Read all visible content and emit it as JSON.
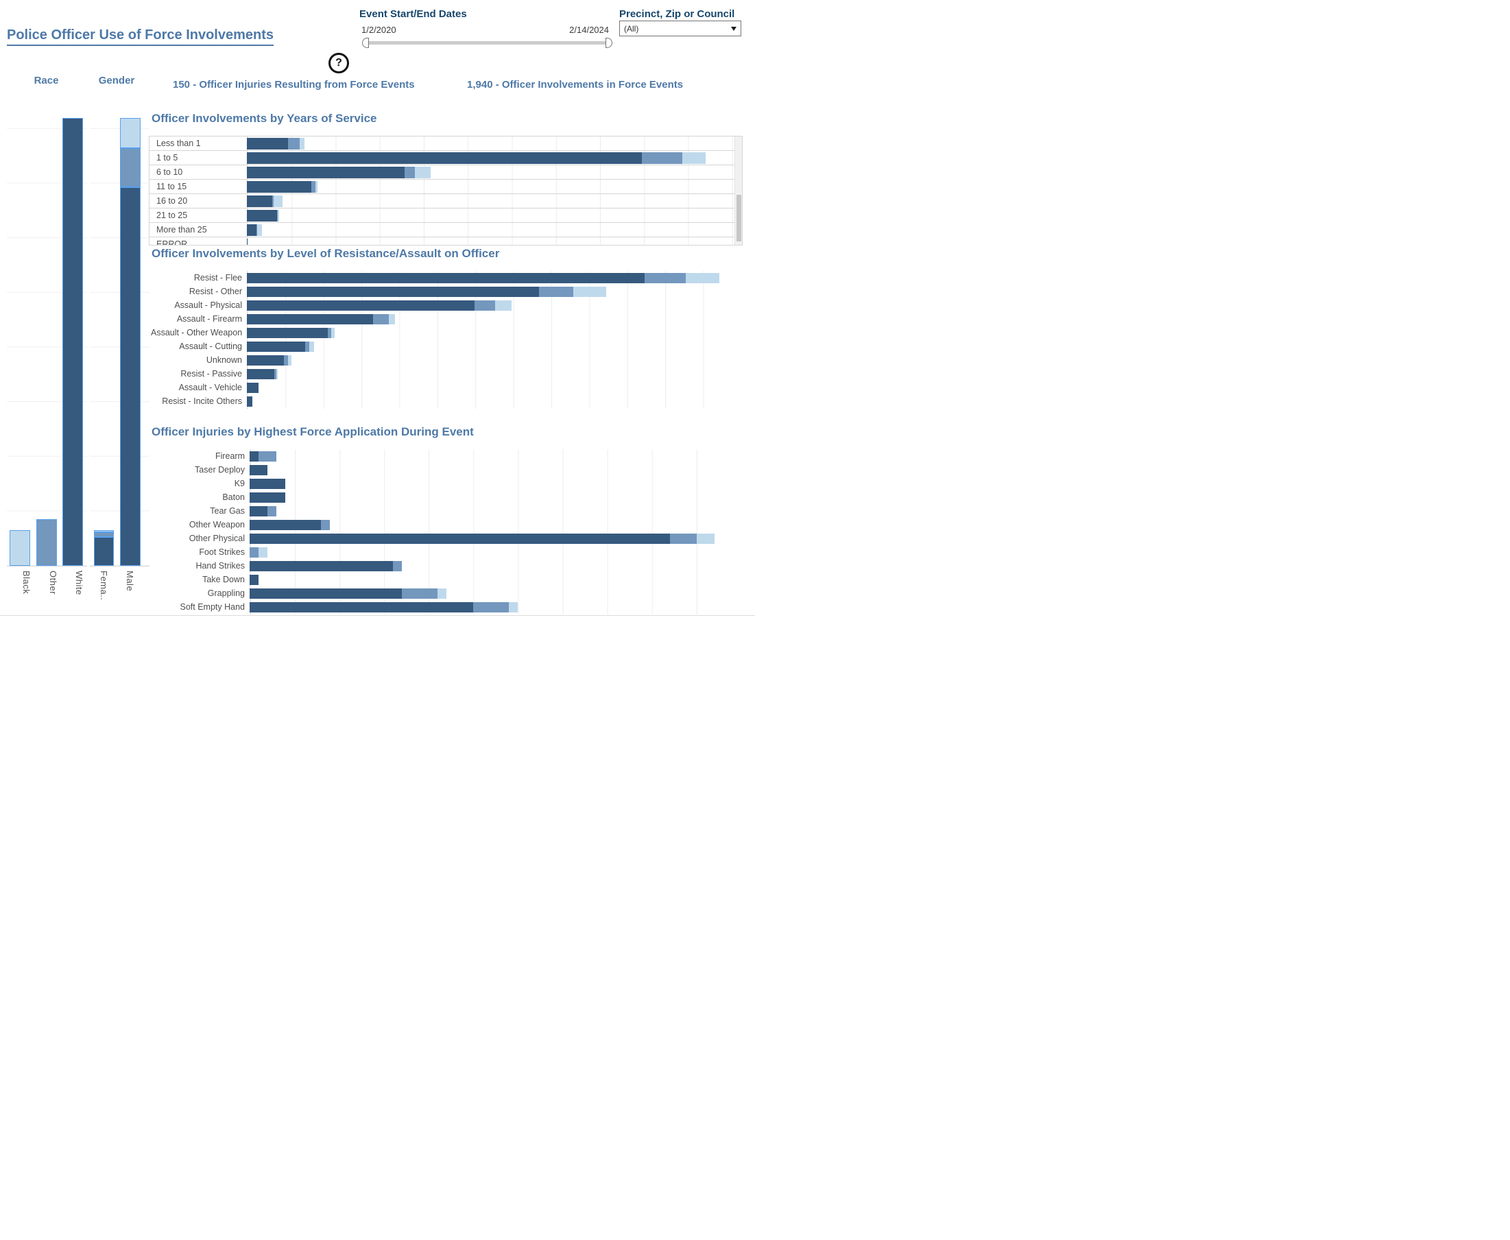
{
  "header": {
    "title": "Police Officer Use of Force Involvements",
    "date_filter": {
      "label": "Event Start/End Dates",
      "start": "1/2/2020",
      "end": "2/14/2024"
    },
    "region_filter": {
      "label": "Precinct, Zip or Council",
      "value": "(All)"
    },
    "stats": [
      {
        "text": "150 - Officer Injuries Resulting from Force Events"
      },
      {
        "text": "1,940 - Officer Involvements in Force Events"
      }
    ]
  },
  "icons": {
    "help": "question-mark-icon",
    "dropdown_caret": "chevron-down-icon"
  },
  "colors": {
    "accent_title": "#4E79A7",
    "filter_header": "#17466B",
    "segment_dark": "#36597E",
    "segment_medium": "#7397BD",
    "segment_light": "#BFD9EC",
    "highlight_border": "#57A0F0",
    "label_gray": "#4E4E4E"
  },
  "chart_data": [
    {
      "id": "race",
      "type": "bar",
      "orientation": "vertical",
      "stacked": true,
      "title": "Race",
      "categories": [
        "Black",
        "Other",
        "White"
      ],
      "series": [
        {
          "key": "dark",
          "name": "dark_blue",
          "values": [
            0,
            0,
            1640
          ]
        },
        {
          "key": "medium",
          "name": "medium_blue",
          "values": [
            0,
            170,
            0
          ]
        },
        {
          "key": "light",
          "name": "light_blue",
          "values": [
            130,
            0,
            0
          ]
        }
      ],
      "ylim": [
        0,
        1730
      ],
      "grid_interval": 200,
      "highlighted": true,
      "legend": "none"
    },
    {
      "id": "gender",
      "type": "bar",
      "orientation": "vertical",
      "stacked": true,
      "title": "Gender",
      "categories": [
        "Fema..",
        "Male"
      ],
      "series": [
        {
          "key": "dark",
          "name": "dark_blue",
          "values": [
            105,
            1386
          ]
        },
        {
          "key": "medium",
          "name": "medium_blue",
          "values": [
            17,
            144
          ]
        },
        {
          "key": "light",
          "name": "light_blue",
          "values": [
            8,
            110
          ]
        }
      ],
      "ylim": [
        0,
        1730
      ],
      "grid_interval": 200,
      "highlighted": true,
      "legend": "none"
    },
    {
      "id": "years",
      "type": "bar",
      "orientation": "horizontal",
      "stacked": true,
      "boxed": true,
      "title": "Officer Involvements by Years of Service",
      "categories": [
        "Less than 1",
        "1 to 5",
        "6 to 10",
        "11 to 15",
        "16 to 20",
        "21 to 25",
        "More than 25",
        "ERROR"
      ],
      "series": [
        {
          "key": "dark",
          "name": "dark_blue",
          "values": [
            94,
            895,
            357,
            146,
            57,
            68,
            21,
            2
          ]
        },
        {
          "key": "medium",
          "name": "medium_blue",
          "values": [
            25,
            92,
            24,
            9,
            3,
            2,
            2,
            0
          ]
        },
        {
          "key": "light",
          "name": "light_blue",
          "values": [
            11,
            53,
            36,
            5,
            21,
            3,
            11,
            0
          ]
        }
      ],
      "xlim": [
        0,
        1105
      ],
      "grid_interval": 100,
      "legend": "none",
      "scrollbar": true
    },
    {
      "id": "resistance",
      "type": "bar",
      "orientation": "horizontal",
      "stacked": true,
      "title": "Officer Involvements by Level of Resistance/Assault on Officer",
      "categories": [
        "Resist - Flee",
        "Resist - Other",
        "Assault - Physical",
        "Assault - Firearm",
        "Assault - Other Weapon",
        "Assault - Cutting",
        "Unknown",
        "Resist - Passive",
        "Assault - Vehicle",
        "Resist - Incite Others"
      ],
      "series": [
        {
          "key": "dark",
          "name": "dark_blue",
          "values": [
            523,
            384,
            299,
            166,
            106,
            77,
            49,
            36,
            15,
            7
          ]
        },
        {
          "key": "medium",
          "name": "medium_blue",
          "values": [
            54,
            45,
            27,
            21,
            5,
            5,
            5,
            3,
            0,
            0
          ]
        },
        {
          "key": "light",
          "name": "light_blue",
          "values": [
            44,
            43,
            22,
            8,
            4,
            6,
            5,
            2,
            0,
            0
          ]
        }
      ],
      "xlim": [
        0,
        650
      ],
      "grid_interval": 50,
      "legend": "none"
    },
    {
      "id": "injuries",
      "type": "bar",
      "orientation": "horizontal",
      "stacked": true,
      "title": "Officer Injuries by Highest Force Application During Event",
      "categories": [
        "Firearm",
        "Taser Deploy",
        "K9",
        "Baton",
        "Tear Gas",
        "Other Weapon",
        "Other Physical",
        "Foot Strikes",
        "Hand Strikes",
        "Take Down",
        "Grappling",
        "Soft Empty Hand"
      ],
      "series": [
        {
          "key": "dark",
          "name": "dark_blue",
          "values": [
            1,
            2,
            4,
            4,
            2,
            8,
            47,
            0,
            16,
            1,
            17,
            25
          ]
        },
        {
          "key": "medium",
          "name": "medium_blue",
          "values": [
            2,
            0,
            0,
            0,
            1,
            1,
            3,
            1,
            1,
            0,
            4,
            4
          ]
        },
        {
          "key": "light",
          "name": "light_blue",
          "values": [
            0,
            0,
            0,
            0,
            0,
            0,
            2,
            1,
            0,
            0,
            1,
            1
          ]
        }
      ],
      "xlim": [
        0,
        55
      ],
      "grid_interval": 5,
      "legend": "none"
    }
  ]
}
